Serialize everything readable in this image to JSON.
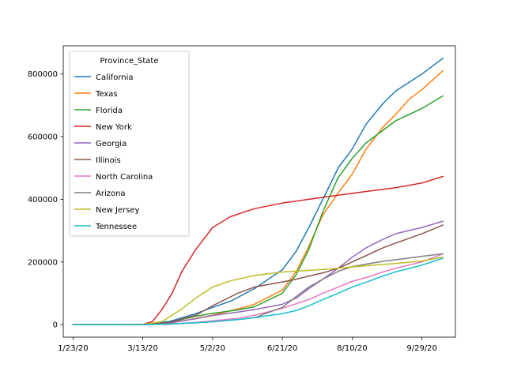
{
  "chart_data": {
    "type": "line",
    "x_type": "date",
    "xlim": [
      "2020-01-16",
      "2020-10-23"
    ],
    "ylim": [
      -40000,
      890000
    ],
    "x_ticks": [
      {
        "date": "2020-01-23",
        "label": "1/23/20"
      },
      {
        "date": "2020-03-13",
        "label": "3/13/20"
      },
      {
        "date": "2020-05-02",
        "label": "5/2/20"
      },
      {
        "date": "2020-06-21",
        "label": "6/21/20"
      },
      {
        "date": "2020-08-10",
        "label": "8/10/20"
      },
      {
        "date": "2020-09-29",
        "label": "9/29/20"
      }
    ],
    "y_ticks": [
      {
        "value": 0,
        "label": "0"
      },
      {
        "value": 200000,
        "label": "200000"
      },
      {
        "value": 400000,
        "label": "400000"
      },
      {
        "value": 600000,
        "label": "600000"
      },
      {
        "value": 800000,
        "label": "800000"
      }
    ],
    "legend": {
      "title": "Province_State",
      "location": "upper-left"
    },
    "series": [
      {
        "name": "California",
        "color": "#1f77b4",
        "points": [
          [
            "2020-01-23",
            0
          ],
          [
            "2020-03-13",
            250
          ],
          [
            "2020-04-01",
            10000
          ],
          [
            "2020-04-20",
            35000
          ],
          [
            "2020-05-02",
            55000
          ],
          [
            "2020-05-15",
            75000
          ],
          [
            "2020-06-01",
            115000
          ],
          [
            "2020-06-21",
            175000
          ],
          [
            "2020-07-01",
            235000
          ],
          [
            "2020-07-10",
            310000
          ],
          [
            "2020-07-20",
            400000
          ],
          [
            "2020-07-31",
            500000
          ],
          [
            "2020-08-10",
            560000
          ],
          [
            "2020-08-20",
            640000
          ],
          [
            "2020-09-01",
            705000
          ],
          [
            "2020-09-10",
            745000
          ],
          [
            "2020-09-29",
            800000
          ],
          [
            "2020-10-14",
            850000
          ]
        ]
      },
      {
        "name": "Texas",
        "color": "#ff7f0e",
        "points": [
          [
            "2020-01-23",
            0
          ],
          [
            "2020-03-13",
            50
          ],
          [
            "2020-04-01",
            4000
          ],
          [
            "2020-04-20",
            20000
          ],
          [
            "2020-05-02",
            30000
          ],
          [
            "2020-05-20",
            50000
          ],
          [
            "2020-06-01",
            65000
          ],
          [
            "2020-06-21",
            110000
          ],
          [
            "2020-07-01",
            170000
          ],
          [
            "2020-07-10",
            250000
          ],
          [
            "2020-07-20",
            350000
          ],
          [
            "2020-07-31",
            420000
          ],
          [
            "2020-08-10",
            480000
          ],
          [
            "2020-08-20",
            560000
          ],
          [
            "2020-09-01",
            630000
          ],
          [
            "2020-09-10",
            670000
          ],
          [
            "2020-09-20",
            720000
          ],
          [
            "2020-09-29",
            750000
          ],
          [
            "2020-10-14",
            810000
          ]
        ]
      },
      {
        "name": "Florida",
        "color": "#2ca02c",
        "points": [
          [
            "2020-01-23",
            0
          ],
          [
            "2020-03-13",
            100
          ],
          [
            "2020-04-01",
            7000
          ],
          [
            "2020-04-20",
            27000
          ],
          [
            "2020-05-02",
            36000
          ],
          [
            "2020-05-20",
            47000
          ],
          [
            "2020-06-01",
            57000
          ],
          [
            "2020-06-21",
            100000
          ],
          [
            "2020-07-01",
            160000
          ],
          [
            "2020-07-10",
            240000
          ],
          [
            "2020-07-20",
            360000
          ],
          [
            "2020-07-31",
            470000
          ],
          [
            "2020-08-10",
            530000
          ],
          [
            "2020-08-20",
            580000
          ],
          [
            "2020-09-01",
            620000
          ],
          [
            "2020-09-10",
            650000
          ],
          [
            "2020-09-29",
            690000
          ],
          [
            "2020-10-14",
            730000
          ]
        ]
      },
      {
        "name": "New York",
        "color": "#d62728",
        "points": [
          [
            "2020-01-23",
            0
          ],
          [
            "2020-03-13",
            500
          ],
          [
            "2020-03-20",
            10000
          ],
          [
            "2020-03-27",
            50000
          ],
          [
            "2020-04-03",
            100000
          ],
          [
            "2020-04-10",
            170000
          ],
          [
            "2020-04-20",
            240000
          ],
          [
            "2020-05-02",
            310000
          ],
          [
            "2020-05-15",
            345000
          ],
          [
            "2020-06-01",
            370000
          ],
          [
            "2020-06-21",
            388000
          ],
          [
            "2020-07-10",
            400000
          ],
          [
            "2020-07-31",
            413000
          ],
          [
            "2020-08-20",
            425000
          ],
          [
            "2020-09-10",
            437000
          ],
          [
            "2020-09-29",
            452000
          ],
          [
            "2020-10-14",
            473000
          ]
        ]
      },
      {
        "name": "Georgia",
        "color": "#9467bd",
        "points": [
          [
            "2020-01-23",
            0
          ],
          [
            "2020-03-13",
            50
          ],
          [
            "2020-04-01",
            5000
          ],
          [
            "2020-04-20",
            19000
          ],
          [
            "2020-05-02",
            29000
          ],
          [
            "2020-05-20",
            40000
          ],
          [
            "2020-06-01",
            48000
          ],
          [
            "2020-06-21",
            65000
          ],
          [
            "2020-07-01",
            85000
          ],
          [
            "2020-07-10",
            115000
          ],
          [
            "2020-07-20",
            145000
          ],
          [
            "2020-07-31",
            180000
          ],
          [
            "2020-08-10",
            215000
          ],
          [
            "2020-08-20",
            245000
          ],
          [
            "2020-09-01",
            272000
          ],
          [
            "2020-09-10",
            290000
          ],
          [
            "2020-09-29",
            310000
          ],
          [
            "2020-10-14",
            330000
          ]
        ]
      },
      {
        "name": "Illinois",
        "color": "#8c564b",
        "points": [
          [
            "2020-01-23",
            0
          ],
          [
            "2020-03-13",
            50
          ],
          [
            "2020-04-01",
            7000
          ],
          [
            "2020-04-20",
            30000
          ],
          [
            "2020-05-02",
            60000
          ],
          [
            "2020-05-20",
            100000
          ],
          [
            "2020-06-01",
            120000
          ],
          [
            "2020-06-21",
            136000
          ],
          [
            "2020-07-01",
            145000
          ],
          [
            "2020-07-10",
            155000
          ],
          [
            "2020-07-20",
            165000
          ],
          [
            "2020-07-31",
            180000
          ],
          [
            "2020-08-10",
            200000
          ],
          [
            "2020-08-20",
            220000
          ],
          [
            "2020-09-01",
            245000
          ],
          [
            "2020-09-10",
            260000
          ],
          [
            "2020-09-29",
            290000
          ],
          [
            "2020-10-14",
            318000
          ]
        ]
      },
      {
        "name": "North Carolina",
        "color": "#e377c2",
        "points": [
          [
            "2020-01-23",
            0
          ],
          [
            "2020-03-13",
            30
          ],
          [
            "2020-04-01",
            1500
          ],
          [
            "2020-04-20",
            7000
          ],
          [
            "2020-05-02",
            12000
          ],
          [
            "2020-05-20",
            20000
          ],
          [
            "2020-06-01",
            30000
          ],
          [
            "2020-06-21",
            52000
          ],
          [
            "2020-07-01",
            67000
          ],
          [
            "2020-07-10",
            80000
          ],
          [
            "2020-07-20",
            100000
          ],
          [
            "2020-07-31",
            120000
          ],
          [
            "2020-08-10",
            138000
          ],
          [
            "2020-08-20",
            150000
          ],
          [
            "2020-09-01",
            168000
          ],
          [
            "2020-09-10",
            180000
          ],
          [
            "2020-09-29",
            200000
          ],
          [
            "2020-10-14",
            226000
          ]
        ]
      },
      {
        "name": "Arizona",
        "color": "#7f7f7f",
        "points": [
          [
            "2020-01-23",
            0
          ],
          [
            "2020-03-13",
            20
          ],
          [
            "2020-04-01",
            1500
          ],
          [
            "2020-04-20",
            6000
          ],
          [
            "2020-05-02",
            9000
          ],
          [
            "2020-05-20",
            16000
          ],
          [
            "2020-06-01",
            22000
          ],
          [
            "2020-06-21",
            55000
          ],
          [
            "2020-07-01",
            90000
          ],
          [
            "2020-07-10",
            120000
          ],
          [
            "2020-07-20",
            145000
          ],
          [
            "2020-07-31",
            170000
          ],
          [
            "2020-08-10",
            185000
          ],
          [
            "2020-08-20",
            193000
          ],
          [
            "2020-09-01",
            202000
          ],
          [
            "2020-09-10",
            207000
          ],
          [
            "2020-09-29",
            218000
          ],
          [
            "2020-10-14",
            226000
          ]
        ]
      },
      {
        "name": "New Jersey",
        "color": "#bcbd22",
        "points": [
          [
            "2020-01-23",
            0
          ],
          [
            "2020-03-13",
            50
          ],
          [
            "2020-03-27",
            10000
          ],
          [
            "2020-04-03",
            30000
          ],
          [
            "2020-04-10",
            50000
          ],
          [
            "2020-04-20",
            85000
          ],
          [
            "2020-05-02",
            120000
          ],
          [
            "2020-05-15",
            140000
          ],
          [
            "2020-06-01",
            157000
          ],
          [
            "2020-06-21",
            168000
          ],
          [
            "2020-07-10",
            173000
          ],
          [
            "2020-07-31",
            180000
          ],
          [
            "2020-08-20",
            188000
          ],
          [
            "2020-09-10",
            195000
          ],
          [
            "2020-09-29",
            203000
          ],
          [
            "2020-10-14",
            215000
          ]
        ]
      },
      {
        "name": "Tennessee",
        "color": "#17becf",
        "points": [
          [
            "2020-01-23",
            0
          ],
          [
            "2020-03-13",
            20
          ],
          [
            "2020-04-01",
            2000
          ],
          [
            "2020-04-20",
            6000
          ],
          [
            "2020-05-02",
            9000
          ],
          [
            "2020-05-20",
            16000
          ],
          [
            "2020-06-01",
            22000
          ],
          [
            "2020-06-21",
            35000
          ],
          [
            "2020-07-01",
            45000
          ],
          [
            "2020-07-10",
            60000
          ],
          [
            "2020-07-20",
            80000
          ],
          [
            "2020-07-31",
            100000
          ],
          [
            "2020-08-10",
            120000
          ],
          [
            "2020-08-20",
            135000
          ],
          [
            "2020-09-01",
            155000
          ],
          [
            "2020-09-10",
            168000
          ],
          [
            "2020-09-29",
            190000
          ],
          [
            "2020-10-14",
            212000
          ]
        ]
      }
    ]
  }
}
